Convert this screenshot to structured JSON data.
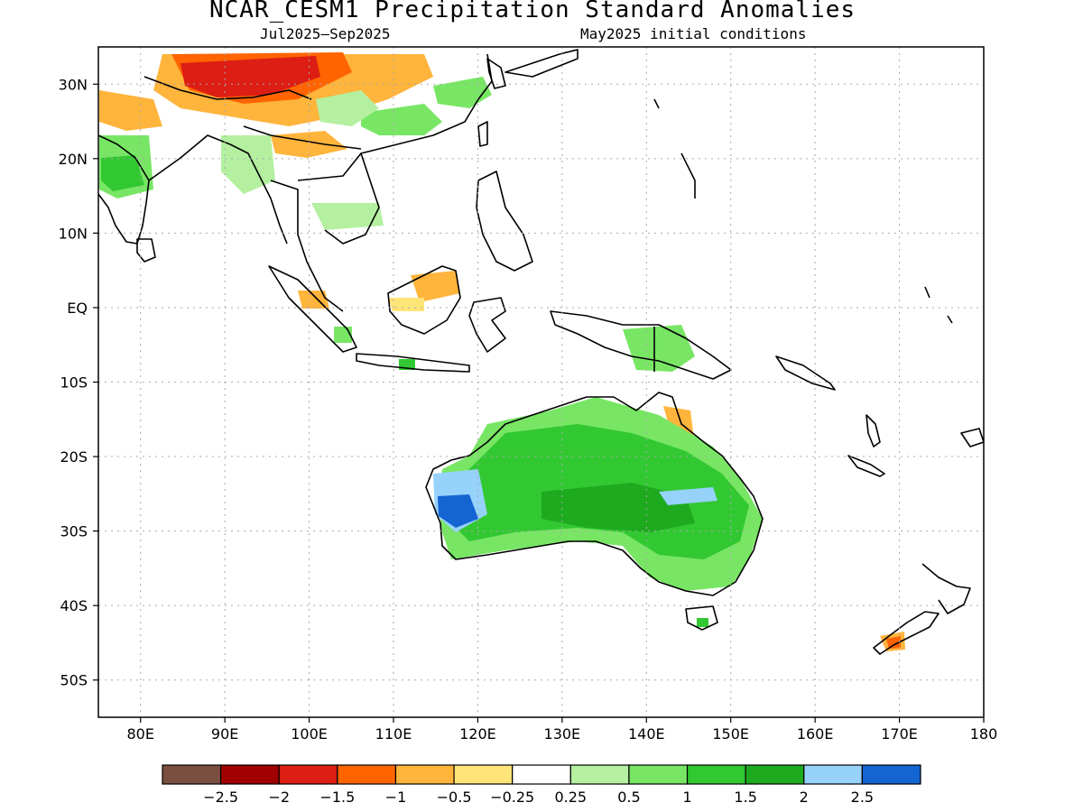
{
  "title": "NCAR_CESM1 Precipitation Standard Anomalies",
  "subtitle_left": "Jul2025–Sep2025",
  "subtitle_right": "May2025 initial conditions",
  "lat_labels": [
    "30N",
    "20N",
    "10N",
    "EQ",
    "10S",
    "20S",
    "30S",
    "40S",
    "50S"
  ],
  "lat_values": [
    30,
    20,
    10,
    0,
    -10,
    -20,
    -30,
    -40,
    -50
  ],
  "lon_labels": [
    "80E",
    "90E",
    "100E",
    "110E",
    "120E",
    "130E",
    "140E",
    "150E",
    "160E",
    "170E",
    "180"
  ],
  "lon_values": [
    80,
    90,
    100,
    110,
    120,
    130,
    140,
    150,
    160,
    170,
    180
  ],
  "extent": {
    "lon_min": 75,
    "lon_max": 180,
    "lat_min": -55,
    "lat_max": 35
  },
  "colorbar": {
    "colors": [
      "#7a4f3f",
      "#a00000",
      "#dc1e14",
      "#ff6400",
      "#ffb43c",
      "#ffe478",
      "#ffffff",
      "#b4f0a0",
      "#78e664",
      "#32c832",
      "#1eaa1e",
      "#96d2fa",
      "#1464d2"
    ],
    "labels": [
      "-2.5",
      "-2",
      "-1.5",
      "-1",
      "-0.5",
      "-0.25",
      "0.25",
      "0.5",
      "1",
      "1.5",
      "2",
      "2.5"
    ]
  }
}
